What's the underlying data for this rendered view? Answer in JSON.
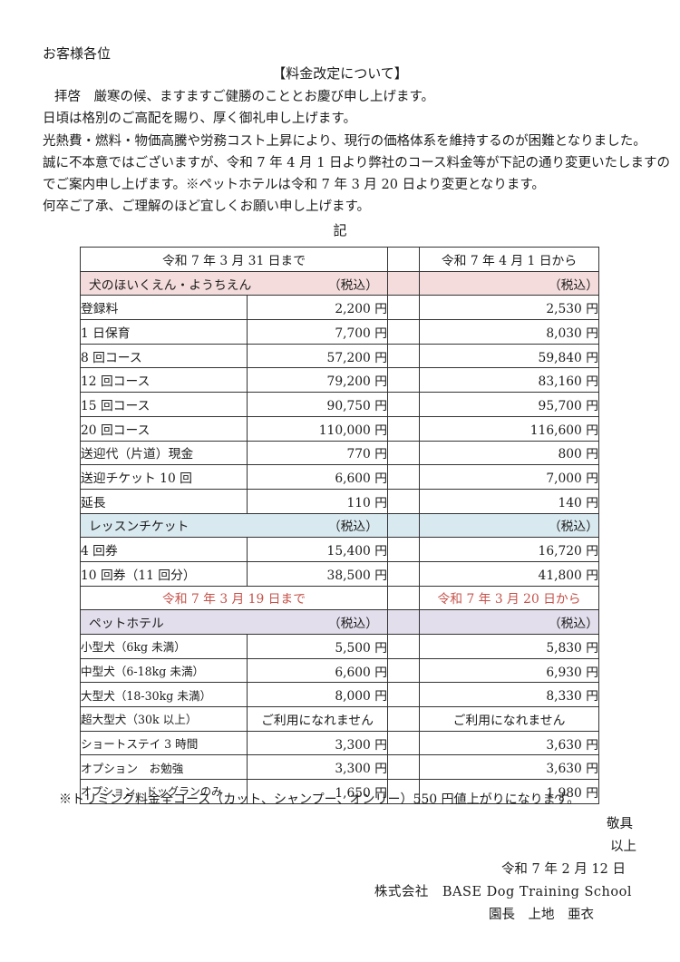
{
  "letter": {
    "recipient": "お客様各位",
    "title": "【料金改定について】",
    "body_lines": [
      "拝啓　厳寒の候、ますますご健勝のこととお慶び申し上げます。",
      "日頃は格別のご高配を賜り、厚く御礼申し上げます。",
      "光熱費・燃料・物価高騰や労務コスト上昇により、現行の価格体系を維持するのが困難となりました。",
      "誠に不本意ではございますが、令和 7 年 4 月 1 日より弊社のコース料金等が下記の通り変更いたしますの",
      "でご案内申し上げます。※ペットホテルは令和 7 年 3 月 20 日より変更となります。",
      "何卒ご了承、ご理解のほど宜しくお願い申し上げます。"
    ],
    "record_marker": "記"
  },
  "table": {
    "rows": [
      {
        "type": "dates",
        "left": "令和 7 年 3 月 31 日まで",
        "right": "令和 7 年 4 月 1 日から"
      },
      {
        "type": "section",
        "theme": "pink",
        "label": "犬のほいくえん・ようちえん",
        "left_tax": "（税込）",
        "right_tax": "（税込）"
      },
      {
        "type": "item",
        "label": "登録料",
        "old": "2,200 円",
        "new": "2,530 円"
      },
      {
        "type": "item",
        "label": "1 日保育",
        "old": "7,700 円",
        "new": "8,030 円"
      },
      {
        "type": "item",
        "label": "8 回コース",
        "old": "57,200 円",
        "new": "59,840 円"
      },
      {
        "type": "item",
        "label": "12 回コース",
        "old": "79,200 円",
        "new": "83,160 円"
      },
      {
        "type": "item",
        "label": "15 回コース",
        "old": "90,750 円",
        "new": "95,700 円"
      },
      {
        "type": "item",
        "label": "20 回コース",
        "old": "110,000 円",
        "new": "116,600 円"
      },
      {
        "type": "item",
        "label": "送迎代（片道）現金",
        "old": "770 円",
        "new": "800 円"
      },
      {
        "type": "item",
        "label": "送迎チケット 10 回",
        "old": "6,600 円",
        "new": "7,000 円"
      },
      {
        "type": "item",
        "label": "延長",
        "old": "110 円",
        "new": "140 円"
      },
      {
        "type": "section",
        "theme": "blue",
        "label": "レッスンチケット",
        "left_tax": "（税込）",
        "right_tax": "（税込）"
      },
      {
        "type": "item",
        "label": "4 回券",
        "old": "15,400 円",
        "new": "16,720 円"
      },
      {
        "type": "item",
        "label": "10 回券（11 回分）",
        "old": "38,500 円",
        "new": "41,800 円"
      },
      {
        "type": "dates_red",
        "left": "令和 7 年 3 月 19 日まで",
        "right": "令和 7 年 3 月 20 日から"
      },
      {
        "type": "section",
        "theme": "purple",
        "label": "ペットホテル",
        "left_tax": "（税込）",
        "right_tax": "（税込）"
      },
      {
        "type": "item",
        "label": "小型犬（6kg 未満）",
        "old": "5,500 円",
        "new": "5,830 円",
        "size": "sm"
      },
      {
        "type": "item",
        "label": "中型犬（6-18kg 未満）",
        "old": "6,600 円",
        "new": "6,930 円",
        "size": "sm"
      },
      {
        "type": "item",
        "label": "大型犬（18-30kg 未満）",
        "old": "8,000 円",
        "new": "8,330 円",
        "size": "sm"
      },
      {
        "type": "item",
        "label": "超大型犬（30k 以上）",
        "old": "ご利用になれません",
        "new": "ご利用になれません",
        "center": true,
        "size": "sm"
      },
      {
        "type": "item",
        "label": "ショートステイ 3 時間",
        "old": "3,300 円",
        "new": "3,630 円",
        "size": "sm"
      },
      {
        "type": "item",
        "label": "オプション　お勉強",
        "old": "3,300 円",
        "new": "3,630 円",
        "size": "sm"
      },
      {
        "type": "item",
        "label": "オプション　ドッグランのみ",
        "old": "1,650 円",
        "new": "1,980 円",
        "size": "xs"
      }
    ]
  },
  "note": "※トリミング料金全コース（カット、シャンプー、オンリー）550 円値上がりになります。",
  "footer": {
    "closing": "敬具",
    "end_marker": "以上",
    "date": "令和 7 年 2 月 12 日",
    "company": "株式会社　BASE Dog Training School",
    "signature": "園長　上地　亜衣"
  },
  "colors": {
    "section_pink": "#f5dcdc",
    "section_blue": "#d9e9f0",
    "section_purple": "#e3deec",
    "red_text": "#c5524a",
    "border": "#333333"
  }
}
